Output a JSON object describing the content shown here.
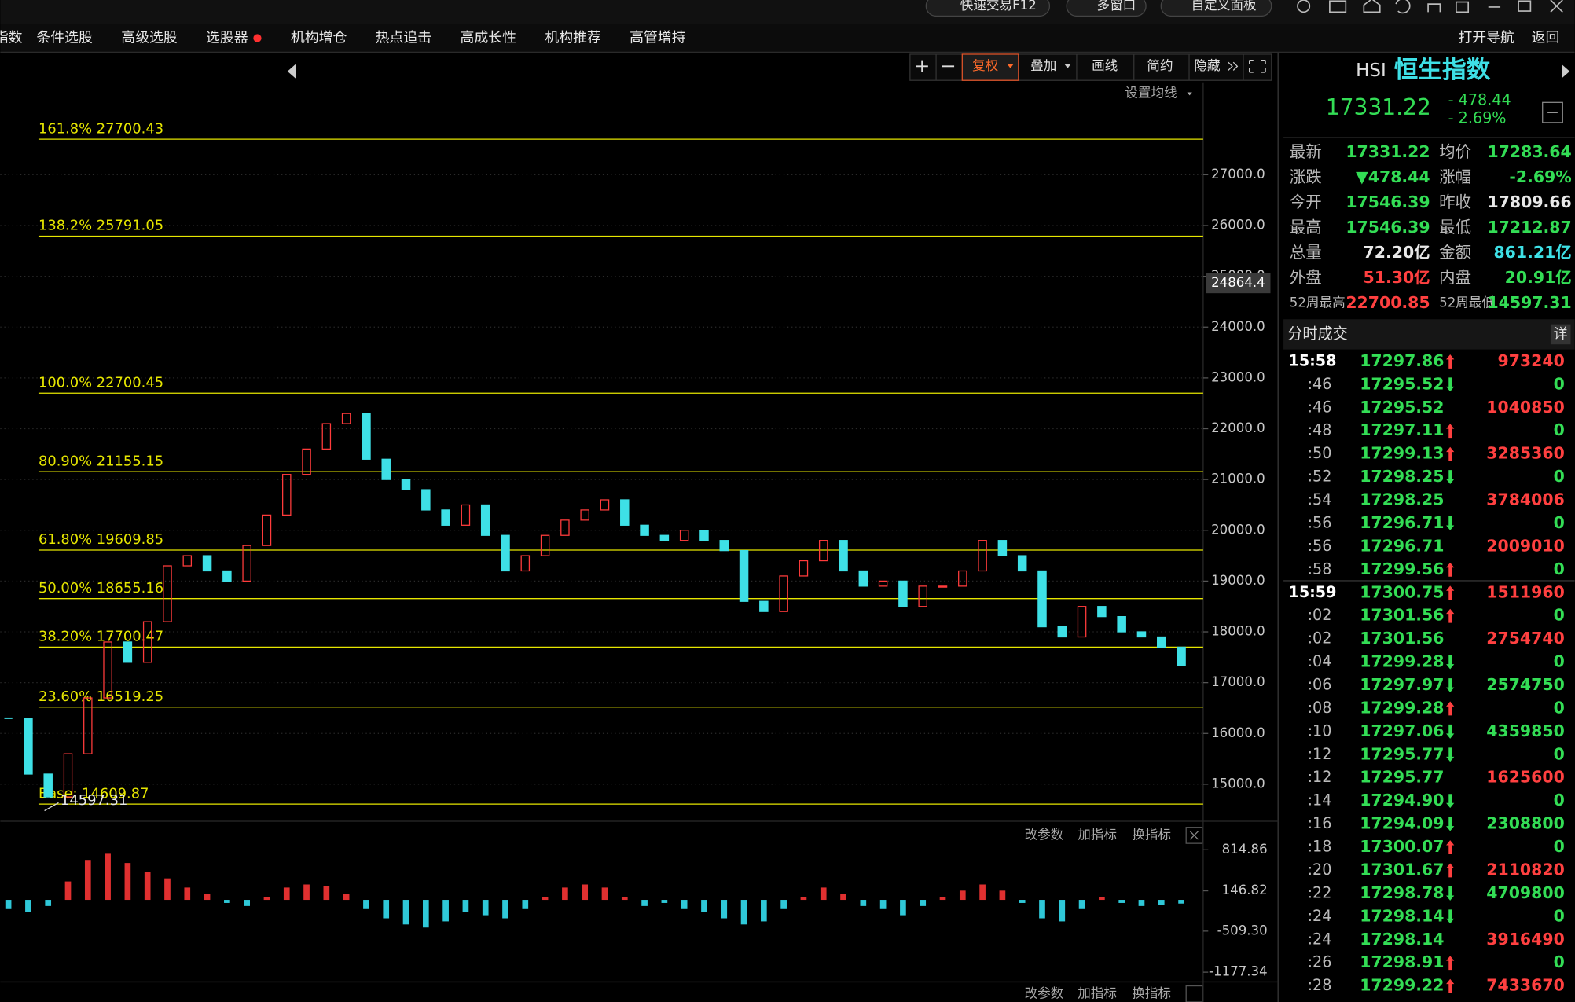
{
  "window": {
    "top_buttons": [
      "快速交易F12",
      "多窗口",
      "自定义面板"
    ]
  },
  "menu": {
    "items": [
      "指数",
      "条件选股",
      "高级选股",
      "选股器",
      "机构增仓",
      "热点追击",
      "高成长性",
      "机构推荐",
      "高管增持"
    ],
    "right": [
      "打开导航",
      "返回"
    ]
  },
  "toolbar": {
    "buttons": [
      "复权",
      "叠加",
      "画线",
      "简约",
      "隐藏"
    ],
    "ma_setting": "设置均线"
  },
  "chart_data": [
    {
      "type": "candlestick",
      "values": [
        16300,
        15200,
        14750,
        15600,
        16700,
        17800,
        17400,
        18200,
        19300,
        19500,
        19200,
        19000,
        19700,
        20300,
        21100,
        21600,
        22100,
        22300,
        21400,
        21000,
        20800,
        20400,
        20100,
        20500,
        19900,
        19200,
        19500,
        19900,
        20200,
        20400,
        20600,
        20100,
        19900,
        19800,
        20000,
        19800,
        19600,
        18600,
        18400,
        19100,
        19400,
        19800,
        19200,
        18900,
        19000,
        18500,
        18900,
        18900,
        19200,
        19800,
        19500,
        19200,
        18100,
        17900,
        18500,
        18300,
        18000,
        17900,
        17700,
        17331.22
      ],
      "up_color": "#ff3b3b",
      "down_color": "#3ee0e6",
      "ylim": [
        14330,
        28820
      ],
      "yticks": [
        {
          "value": 15000,
          "label": "15000.0"
        },
        {
          "value": 16000,
          "label": "16000.0"
        },
        {
          "value": 17000,
          "label": "17000.0"
        },
        {
          "value": 18000,
          "label": "18000.0"
        },
        {
          "value": 19000,
          "label": "19000.0"
        },
        {
          "value": 20000,
          "label": "20000.0"
        },
        {
          "value": 21000,
          "label": "21000.0"
        },
        {
          "value": 22000,
          "label": "22000.0"
        },
        {
          "value": 23000,
          "label": "23000.0"
        },
        {
          "value": 24000,
          "label": "24000.0"
        },
        {
          "value": 25000,
          "label": "25000.0"
        },
        {
          "value": 26000,
          "label": "26000.0"
        },
        {
          "value": 27000,
          "label": "27000.0"
        }
      ],
      "cursor_value": 24864.4,
      "low_marker": 14597.31,
      "fib_color": "#e6e600",
      "fib_levels": [
        {
          "value": 27700.43,
          "label": "161.8% 27700.43"
        },
        {
          "value": 25791.05,
          "label": "138.2% 25791.05"
        },
        {
          "value": 22700.45,
          "label": "100.0% 22700.45"
        },
        {
          "value": 21155.15,
          "label": "80.90% 21155.15"
        },
        {
          "value": 19609.85,
          "label": "61.80% 19609.85"
        },
        {
          "value": 18655.16,
          "label": "50.00% 18655.16"
        },
        {
          "value": 17700.47,
          "label": "38.20% 17700.47"
        },
        {
          "value": 16519.25,
          "label": "23.60% 16519.25"
        },
        {
          "value": 14609.87,
          "label": "Base: 14609.87"
        }
      ],
      "grid": true
    },
    {
      "type": "bar",
      "values": [
        -150,
        -200,
        -100,
        300,
        650,
        750,
        600,
        450,
        350,
        200,
        100,
        -50,
        -100,
        50,
        200,
        250,
        220,
        100,
        -150,
        -300,
        -400,
        -450,
        -350,
        -200,
        -250,
        -300,
        -150,
        50,
        200,
        250,
        200,
        50,
        -100,
        -50,
        -150,
        -200,
        -300,
        -400,
        -350,
        -150,
        50,
        200,
        100,
        -100,
        -150,
        -250,
        -100,
        50,
        150,
        250,
        150,
        -50,
        -300,
        -350,
        -150,
        50,
        -50,
        -100,
        -80,
        -60
      ],
      "up_color": "#e03030",
      "down_color": "#2fc8d8",
      "ylim": [
        -1286,
        1001
      ],
      "yticks": [
        814.86,
        146.82,
        -509.3,
        -1177.34
      ],
      "ytick_labels": [
        "814.86",
        "146.82",
        "-509.30",
        "-1177.34"
      ],
      "tools": [
        "改参数",
        "加指标",
        "换指标"
      ]
    }
  ],
  "quote": {
    "code": "HSI",
    "name": "恒生指数",
    "price": "17331.22",
    "change": "- 478.44",
    "pct": "- 2.69%",
    "stats": [
      {
        "label": "最新",
        "value": "17331.22",
        "color": "#33dd55"
      },
      {
        "label": "均价",
        "value": "17283.64",
        "color": "#33dd55"
      },
      {
        "label": "涨跌",
        "value": "▼478.44",
        "color": "#33dd55"
      },
      {
        "label": "涨幅",
        "value": "-2.69%",
        "color": "#33dd55"
      },
      {
        "label": "今开",
        "value": "17546.39",
        "color": "#33dd55"
      },
      {
        "label": "昨收",
        "value": "17809.66",
        "color": "#e8e8e8"
      },
      {
        "label": "最高",
        "value": "17546.39",
        "color": "#33dd55"
      },
      {
        "label": "最低",
        "value": "17212.87",
        "color": "#33dd55"
      },
      {
        "label": "总量",
        "value": "72.20亿",
        "color": "#e8e8e8"
      },
      {
        "label": "金额",
        "value": "861.21亿",
        "color": "#3ee0e6"
      },
      {
        "label": "外盘",
        "value": "51.30亿",
        "color": "#ff4040"
      },
      {
        "label": "内盘",
        "value": "20.91亿",
        "color": "#33dd55"
      },
      {
        "label": "52周最高",
        "value": "22700.85",
        "color": "#ff4040"
      },
      {
        "label": "52周最低",
        "value": "14597.31",
        "color": "#33dd55"
      }
    ]
  },
  "trades": {
    "title": "分时成交",
    "detail": "详",
    "rows": [
      {
        "time": "15:58",
        "price": "17297.86",
        "dir": "up",
        "volume": 973240
      },
      {
        "time": ":46",
        "price": "17295.52",
        "dir": "down",
        "volume": 0
      },
      {
        "time": ":46",
        "price": "17295.52",
        "dir": null,
        "volume": 1040850
      },
      {
        "time": ":48",
        "price": "17297.11",
        "dir": "up",
        "volume": 0
      },
      {
        "time": ":50",
        "price": "17299.13",
        "dir": "up",
        "volume": 3285360
      },
      {
        "time": ":52",
        "price": "17298.25",
        "dir": "down",
        "volume": 0
      },
      {
        "time": ":54",
        "price": "17298.25",
        "dir": null,
        "volume": 3784006
      },
      {
        "time": ":56",
        "price": "17296.71",
        "dir": "down",
        "volume": 0
      },
      {
        "time": ":56",
        "price": "17296.71",
        "dir": null,
        "volume": 2009010
      },
      {
        "time": ":58",
        "price": "17299.56",
        "dir": "up",
        "volume": 0
      },
      {
        "time": "15:59",
        "price": "17300.75",
        "dir": "up",
        "volume": 1511960
      },
      {
        "time": ":02",
        "price": "17301.56",
        "dir": "up",
        "volume": 0
      },
      {
        "time": ":02",
        "price": "17301.56",
        "dir": null,
        "volume": 2754740
      },
      {
        "time": ":04",
        "price": "17299.28",
        "dir": "down",
        "volume": 0
      },
      {
        "time": ":06",
        "price": "17297.97",
        "dir": "down",
        "volume": 2574750
      },
      {
        "time": ":08",
        "price": "17299.28",
        "dir": "up",
        "volume": 0
      },
      {
        "time": ":10",
        "price": "17297.06",
        "dir": "down",
        "volume": 4359850
      },
      {
        "time": ":12",
        "price": "17295.77",
        "dir": "down",
        "volume": 0
      },
      {
        "time": ":12",
        "price": "17295.77",
        "dir": null,
        "volume": 1625600
      },
      {
        "time": ":14",
        "price": "17294.90",
        "dir": "down",
        "volume": 0
      },
      {
        "time": ":16",
        "price": "17294.09",
        "dir": "down",
        "volume": 2308800
      },
      {
        "time": ":18",
        "price": "17300.07",
        "dir": "up",
        "volume": 0
      },
      {
        "time": ":20",
        "price": "17301.67",
        "dir": "up",
        "volume": 2110820
      },
      {
        "time": ":22",
        "price": "17298.78",
        "dir": "down",
        "volume": 4709800
      },
      {
        "time": ":24",
        "price": "17298.14",
        "dir": "down",
        "volume": 0
      },
      {
        "time": ":24",
        "price": "17298.14",
        "dir": null,
        "volume": 3916490
      },
      {
        "time": ":26",
        "price": "17298.91",
        "dir": "up",
        "volume": 0
      },
      {
        "time": ":28",
        "price": "17299.22",
        "dir": "up",
        "volume": 7433670
      }
    ]
  }
}
